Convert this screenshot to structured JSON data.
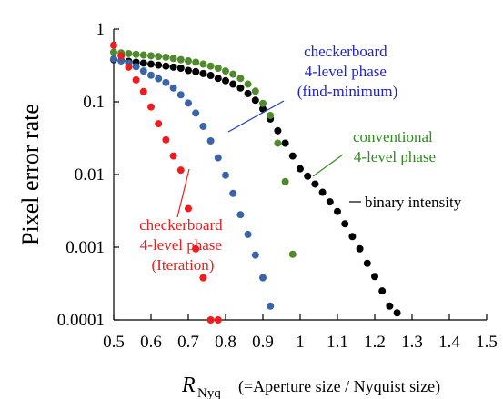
{
  "chart_data": {
    "type": "scatter",
    "title": "",
    "ylabel": "Pixel error rate",
    "xlabel": {
      "symbol": "R",
      "subscript": "Nyq",
      "description": "(=Aperture size / Nyquist size)"
    },
    "xlim": [
      0.5,
      1.5
    ],
    "ylim": [
      0.0001,
      1
    ],
    "yscale": "log",
    "grid": false,
    "legend": "none",
    "x_ticks": [
      "0.5",
      "0.6",
      "0.7",
      "0.8",
      "0.9",
      "1",
      "1.1",
      "1.2",
      "1.3",
      "1.4",
      "1.5"
    ],
    "x_tick_values": [
      0.5,
      0.6,
      0.7,
      0.8,
      0.9,
      1.0,
      1.1,
      1.2,
      1.3,
      1.4,
      1.5
    ],
    "y_ticks": [
      "1",
      "0.1",
      "0.01",
      "0.001",
      "0.0001"
    ],
    "y_tick_values": [
      1,
      0.1,
      0.01,
      0.001,
      0.0001
    ],
    "series": [
      {
        "name": "binary intensity",
        "color": "#000000",
        "points": [
          [
            0.5,
            0.38
          ],
          [
            0.52,
            0.37
          ],
          [
            0.54,
            0.36
          ],
          [
            0.56,
            0.35
          ],
          [
            0.58,
            0.34
          ],
          [
            0.6,
            0.33
          ],
          [
            0.62,
            0.32
          ],
          [
            0.64,
            0.31
          ],
          [
            0.66,
            0.3
          ],
          [
            0.68,
            0.29
          ],
          [
            0.7,
            0.27
          ],
          [
            0.72,
            0.26
          ],
          [
            0.74,
            0.245
          ],
          [
            0.76,
            0.23
          ],
          [
            0.78,
            0.21
          ],
          [
            0.8,
            0.195
          ],
          [
            0.82,
            0.175
          ],
          [
            0.84,
            0.155
          ],
          [
            0.86,
            0.13
          ],
          [
            0.88,
            0.105
          ],
          [
            0.9,
            0.08
          ],
          [
            0.92,
            0.058
          ],
          [
            0.94,
            0.04
          ],
          [
            0.96,
            0.027
          ],
          [
            0.98,
            0.018
          ],
          [
            1.0,
            0.012
          ],
          [
            1.02,
            0.0095
          ],
          [
            1.04,
            0.0074
          ],
          [
            1.06,
            0.0057
          ],
          [
            1.08,
            0.0042
          ],
          [
            1.1,
            0.0031
          ],
          [
            1.12,
            0.0021
          ],
          [
            1.14,
            0.0014
          ],
          [
            1.16,
            0.00095
          ],
          [
            1.18,
            0.0006
          ],
          [
            1.2,
            0.000395
          ],
          [
            1.22,
            0.00025
          ],
          [
            1.24,
            0.000155
          ],
          [
            1.26,
            0.000125
          ]
        ]
      },
      {
        "name": "conventional 4-level phase",
        "color": "#4f8a2d",
        "points": [
          [
            0.5,
            0.48
          ],
          [
            0.52,
            0.47
          ],
          [
            0.54,
            0.46
          ],
          [
            0.56,
            0.45
          ],
          [
            0.58,
            0.44
          ],
          [
            0.6,
            0.43
          ],
          [
            0.62,
            0.42
          ],
          [
            0.64,
            0.41
          ],
          [
            0.66,
            0.395
          ],
          [
            0.68,
            0.38
          ],
          [
            0.7,
            0.365
          ],
          [
            0.72,
            0.35
          ],
          [
            0.74,
            0.33
          ],
          [
            0.76,
            0.31
          ],
          [
            0.78,
            0.29
          ],
          [
            0.8,
            0.265
          ],
          [
            0.82,
            0.24
          ],
          [
            0.84,
            0.21
          ],
          [
            0.86,
            0.175
          ],
          [
            0.88,
            0.14
          ],
          [
            0.9,
            0.095
          ],
          [
            0.92,
            0.065
          ],
          [
            0.94,
            0.027
          ],
          [
            0.96,
            0.008
          ],
          [
            0.98,
            0.0008
          ]
        ]
      },
      {
        "name": "checkerboard 4-level phase (find-minimum)",
        "color": "#3b64a8",
        "points": [
          [
            0.5,
            0.39
          ],
          [
            0.52,
            0.365
          ],
          [
            0.54,
            0.34
          ],
          [
            0.56,
            0.305
          ],
          [
            0.58,
            0.265
          ],
          [
            0.6,
            0.232
          ],
          [
            0.62,
            0.208
          ],
          [
            0.64,
            0.184
          ],
          [
            0.66,
            0.155
          ],
          [
            0.68,
            0.125
          ],
          [
            0.7,
            0.096
          ],
          [
            0.72,
            0.07
          ],
          [
            0.74,
            0.046
          ],
          [
            0.76,
            0.029
          ],
          [
            0.78,
            0.017
          ],
          [
            0.8,
            0.0098
          ],
          [
            0.82,
            0.0055
          ],
          [
            0.84,
            0.0028
          ],
          [
            0.86,
            0.0015
          ],
          [
            0.88,
            0.00078
          ],
          [
            0.9,
            0.00038
          ],
          [
            0.92,
            0.000155
          ]
        ]
      },
      {
        "name": "checkerboard 4-level phase (Iteration)",
        "color": "#ee1c1c",
        "points": [
          [
            0.5,
            0.6
          ],
          [
            0.52,
            0.43
          ],
          [
            0.54,
            0.3
          ],
          [
            0.56,
            0.2
          ],
          [
            0.58,
            0.138
          ],
          [
            0.6,
            0.085
          ],
          [
            0.62,
            0.05
          ],
          [
            0.64,
            0.03
          ],
          [
            0.66,
            0.018
          ],
          [
            0.68,
            0.0115
          ],
          [
            0.7,
            0.0034
          ],
          [
            0.72,
            0.00095
          ],
          [
            0.74,
            0.00038
          ],
          [
            0.76,
            0.0001
          ],
          [
            0.78,
            0.0001
          ]
        ]
      }
    ],
    "annotations": [
      {
        "lines": [
          "checkerboard",
          "4-level phase",
          "(find-minimum)"
        ],
        "color": "#2222cc"
      },
      {
        "lines": [
          "conventional",
          "4-level phase"
        ],
        "color": "#2e8b1f"
      },
      {
        "lines": [
          "binary intensity"
        ],
        "color": "#000000"
      },
      {
        "lines": [
          "checkerboard",
          "4-level phase",
          "(Iteration)"
        ],
        "color": "#ee1c1c"
      }
    ]
  }
}
